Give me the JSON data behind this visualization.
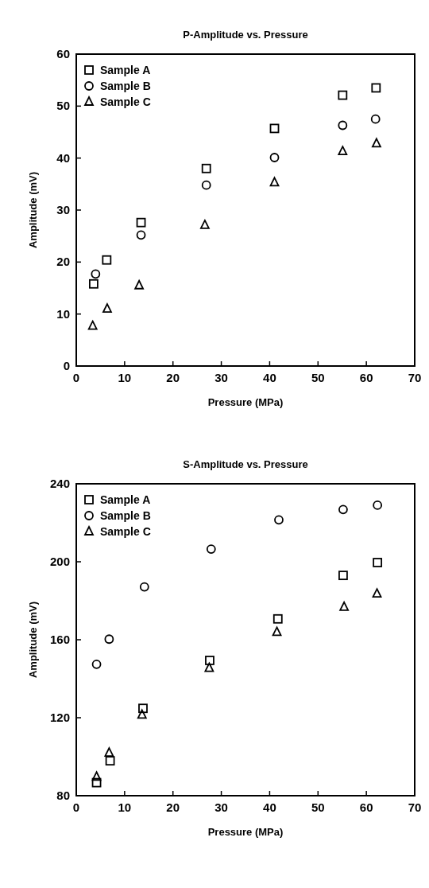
{
  "chart_data": [
    {
      "type": "scatter",
      "title": "P-Amplitude vs. Pressure",
      "xlabel": "Pressure (MPa)",
      "ylabel": "Amplitude (mV)",
      "xlim": [
        0,
        70
      ],
      "xticks": [
        0,
        10,
        20,
        30,
        40,
        50,
        60,
        70
      ],
      "ylim": [
        0,
        60
      ],
      "yticks": [
        0,
        10,
        20,
        30,
        40,
        50,
        60
      ],
      "grid": false,
      "legend": "top left",
      "series": [
        {
          "name": "Sample A",
          "color": "#000000",
          "marker": "square",
          "x": [
            3.6,
            6.3,
            13.4,
            26.9,
            41,
            55.1,
            62
          ],
          "values": [
            15.8,
            20.4,
            27.6,
            38,
            45.7,
            52.1,
            53.5
          ]
        },
        {
          "name": "Sample B",
          "color": "#000000",
          "marker": "circle",
          "x": [
            4,
            13.4,
            26.9,
            41,
            55.1,
            61.9
          ],
          "values": [
            17.7,
            25.2,
            34.8,
            40.1,
            46.3,
            47.5
          ]
        },
        {
          "name": "Sample C",
          "color": "#000000",
          "marker": "triangle",
          "x": [
            3.4,
            6.4,
            13,
            26.6,
            41,
            55.1,
            62.1
          ],
          "values": [
            7.7,
            11,
            15.5,
            27.1,
            35.3,
            41.3,
            42.8
          ]
        }
      ]
    },
    {
      "type": "scatter",
      "title": "S-Amplitude vs. Pressure",
      "xlabel": "Pressure (MPa)",
      "ylabel": "Amplitude (mV)",
      "xlim": [
        0,
        70
      ],
      "xticks": [
        0,
        10,
        20,
        30,
        40,
        50,
        60,
        70
      ],
      "ylim": [
        80,
        240
      ],
      "yticks": [
        80,
        120,
        160,
        200,
        240
      ],
      "grid": false,
      "legend": "top left",
      "series": [
        {
          "name": "Sample A",
          "color": "#000000",
          "marker": "square",
          "x": [
            4.2,
            7,
            13.8,
            27.6,
            41.7,
            55.2,
            62.3
          ],
          "values": [
            86.7,
            97.9,
            124.8,
            149.4,
            170.7,
            193,
            199.6
          ]
        },
        {
          "name": "Sample B",
          "color": "#000000",
          "marker": "circle",
          "x": [
            4.2,
            6.8,
            14.1,
            27.9,
            41.9,
            55.2,
            62.3
          ],
          "values": [
            147.4,
            160.3,
            187.1,
            206.5,
            221.5,
            226.8,
            229
          ]
        },
        {
          "name": "Sample C",
          "color": "#000000",
          "marker": "triangle",
          "x": [
            4.2,
            6.8,
            13.6,
            27.5,
            41.5,
            55.4,
            62.2
          ],
          "values": [
            89.7,
            102,
            121.5,
            145.5,
            163.9,
            176.8,
            183.6
          ]
        }
      ]
    }
  ]
}
